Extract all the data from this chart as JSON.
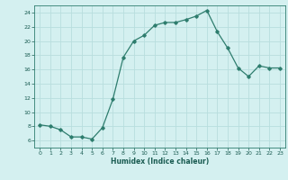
{
  "x": [
    0,
    1,
    2,
    3,
    4,
    5,
    6,
    7,
    8,
    9,
    10,
    11,
    12,
    13,
    14,
    15,
    16,
    17,
    18,
    19,
    20,
    21,
    22,
    23
  ],
  "y": [
    8.2,
    8.0,
    7.5,
    6.5,
    6.5,
    6.2,
    7.8,
    11.8,
    17.7,
    20.0,
    20.8,
    22.2,
    22.6,
    22.6,
    23.0,
    23.5,
    24.3,
    21.3,
    19.0,
    16.2,
    15.0,
    16.5,
    16.2,
    16.2
  ],
  "xlabel": "Humidex (Indice chaleur)",
  "line_color": "#2e7d6e",
  "bg_color": "#d4f0f0",
  "grid_color": "#b8dede",
  "text_color": "#1a5c52",
  "xlim": [
    -0.5,
    23.5
  ],
  "ylim": [
    5,
    25
  ],
  "yticks": [
    6,
    8,
    10,
    12,
    14,
    16,
    18,
    20,
    22,
    24
  ],
  "xticks": [
    0,
    1,
    2,
    3,
    4,
    5,
    6,
    7,
    8,
    9,
    10,
    11,
    12,
    13,
    14,
    15,
    16,
    17,
    18,
    19,
    20,
    21,
    22,
    23
  ]
}
